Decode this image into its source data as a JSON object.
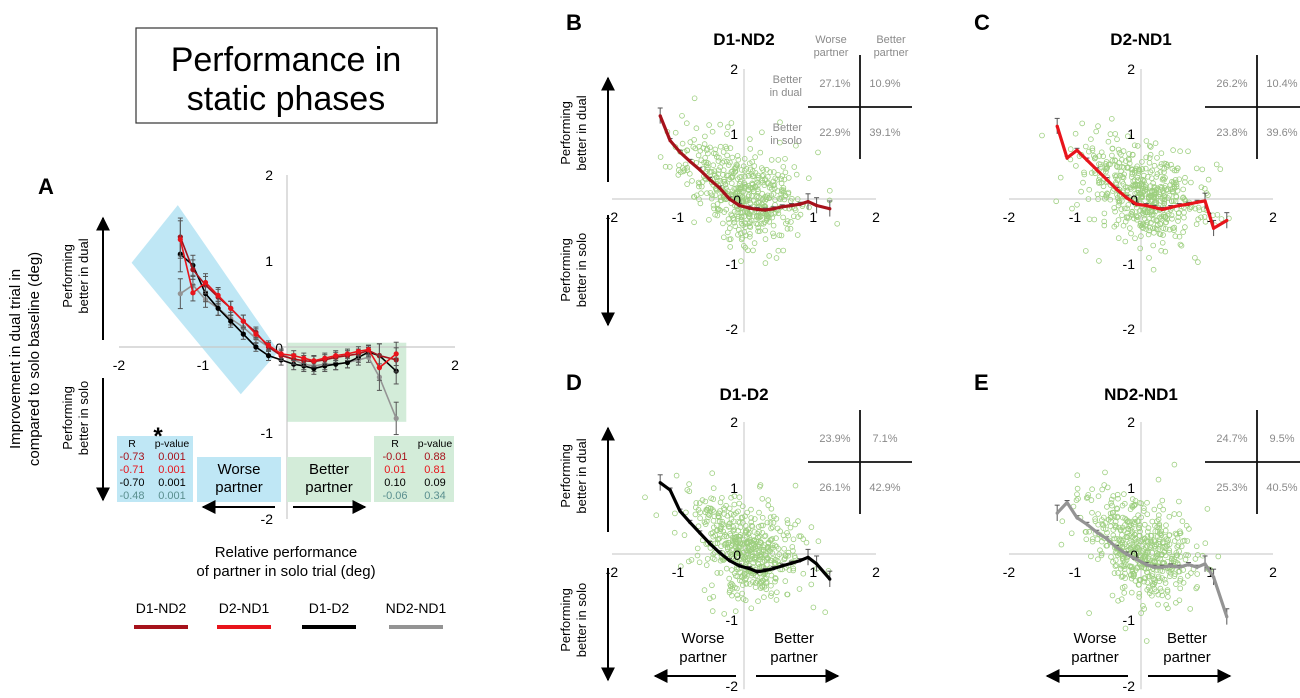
{
  "title_box": {
    "line1": "Performance in",
    "line2": "static phases"
  },
  "legend": [
    {
      "name": "D1-ND2",
      "color": "#a6121b"
    },
    {
      "name": "D2-ND1",
      "color": "#e8141b"
    },
    {
      "name": "D1-D2",
      "color": "#000000"
    },
    {
      "name": "ND2-ND1",
      "color": "#949494"
    }
  ],
  "labels": {
    "y_axis_line1": "Improvement in dual trial in",
    "y_axis_line2": "compared to solo baseline (deg)",
    "x_axis_line1": "Relative performance",
    "x_axis_line2": "of partner in solo trial (deg)",
    "better_dual_1": "Performing",
    "better_dual_2": "better in dual",
    "better_solo_1": "Performing",
    "better_solo_2": "better in solo",
    "worse_partner_1": "Worse",
    "worse_partner_2": "partner",
    "better_partner_1": "Better",
    "better_partner_2": "partner",
    "star": "*"
  },
  "colors": {
    "scatter": "#9dcf7f",
    "blue_band": "#bfe7f5",
    "green_band": "#d3ecd9",
    "errbar": "#555555",
    "grid_text": "#8a8a8a"
  },
  "stats_left": {
    "header": [
      "R",
      "p-value"
    ],
    "rows": [
      [
        "-0.73",
        "0.001"
      ],
      [
        "-0.71",
        "0.001"
      ],
      [
        "-0.70",
        "0.001"
      ],
      [
        "-0.48",
        "0.001"
      ]
    ],
    "colors": [
      "#a6121b",
      "#e8141b",
      "#000000",
      "#5a8f8f"
    ]
  },
  "stats_right": {
    "header": [
      "R",
      "p-value"
    ],
    "rows": [
      [
        "-0.01",
        "0.88"
      ],
      [
        "0.01",
        "0.81"
      ],
      [
        "0.10",
        "0.09"
      ],
      [
        "-0.06",
        "0.34"
      ]
    ],
    "colors": [
      "#a6121b",
      "#e8141b",
      "#000000",
      "#5a8f8f"
    ]
  },
  "chart_data": [
    {
      "panel": "A",
      "type": "line",
      "title": "",
      "xlabel": "Relative performance of partner in solo trial (deg)",
      "ylabel": "Improvement in dual trial in compared to solo baseline (deg)",
      "xlim": [
        -2,
        2
      ],
      "ylim": [
        -2,
        2
      ],
      "xticks": [
        "-2",
        "-1",
        "2"
      ],
      "yticks": [
        "2",
        "1",
        "-1",
        "-2"
      ],
      "origin_label": "0",
      "series": [
        {
          "name": "D1-ND2",
          "color": "#a6121b",
          "x": [
            -1.27,
            -1.12,
            -0.97,
            -0.82,
            -0.67,
            -0.52,
            -0.37,
            -0.22,
            -0.07,
            0.08,
            0.2,
            0.32,
            0.45,
            0.58,
            0.72,
            0.85,
            0.97,
            1.1,
            1.3
          ],
          "y": [
            1.28,
            0.9,
            0.72,
            0.58,
            0.45,
            0.3,
            0.17,
            0.0,
            -0.1,
            -0.14,
            -0.16,
            -0.17,
            -0.15,
            -0.12,
            -0.1,
            -0.08,
            -0.04,
            -0.1,
            -0.15
          ]
        },
        {
          "name": "D2-ND1",
          "color": "#e8141b",
          "x": [
            -1.27,
            -1.12,
            -0.97,
            -0.82,
            -0.67,
            -0.52,
            -0.37,
            -0.22,
            -0.07,
            0.08,
            0.2,
            0.32,
            0.45,
            0.58,
            0.72,
            0.85,
            0.97,
            1.1,
            1.3
          ],
          "y": [
            1.25,
            0.63,
            0.75,
            0.6,
            0.45,
            0.3,
            0.15,
            0.02,
            -0.08,
            -0.1,
            -0.13,
            -0.16,
            -0.13,
            -0.1,
            -0.08,
            -0.05,
            -0.03,
            -0.24,
            -0.08
          ]
        },
        {
          "name": "D1-D2",
          "color": "#000000",
          "x": [
            -1.27,
            -1.12,
            -0.97,
            -0.82,
            -0.67,
            -0.52,
            -0.37,
            -0.22,
            -0.07,
            0.08,
            0.2,
            0.32,
            0.45,
            0.58,
            0.72,
            0.85,
            0.97,
            1.1,
            1.3
          ],
          "y": [
            1.08,
            0.95,
            0.62,
            0.45,
            0.3,
            0.15,
            0.0,
            -0.1,
            -0.15,
            -0.2,
            -0.22,
            -0.25,
            -0.22,
            -0.2,
            -0.18,
            -0.12,
            -0.06,
            -0.1,
            -0.28
          ]
        },
        {
          "name": "ND2-ND1",
          "color": "#949494",
          "x": [
            -1.27,
            -1.12,
            -0.97,
            -0.82,
            -0.67,
            -0.52,
            -0.37,
            -0.22,
            -0.07,
            0.08,
            0.2,
            0.32,
            0.45,
            0.58,
            0.72,
            0.85,
            0.97,
            1.1,
            1.3
          ],
          "y": [
            0.62,
            0.72,
            0.55,
            0.45,
            0.33,
            0.23,
            0.1,
            0.0,
            -0.08,
            -0.15,
            -0.2,
            -0.22,
            -0.2,
            -0.2,
            -0.18,
            -0.15,
            -0.12,
            -0.35,
            -0.83
          ]
        }
      ]
    },
    {
      "panel": "B",
      "type": "scatter",
      "title": "D1-ND2",
      "seed": 11,
      "xlim": [
        -2,
        2
      ],
      "ylim": [
        -2,
        2
      ],
      "xticks": [
        "-2",
        "-1",
        "1",
        "2"
      ],
      "yticks": [
        "2",
        "1",
        "-1",
        "-2"
      ],
      "origin_label": "0",
      "line_color": "#a6121b",
      "line_x": [
        -1.27,
        -1.12,
        -0.97,
        -0.82,
        -0.67,
        -0.52,
        -0.37,
        -0.22,
        -0.07,
        0.08,
        0.2,
        0.32,
        0.45,
        0.58,
        0.72,
        0.85,
        0.97,
        1.1,
        1.3
      ],
      "line_y": [
        1.28,
        0.9,
        0.72,
        0.58,
        0.45,
        0.3,
        0.17,
        0.0,
        -0.1,
        -0.14,
        -0.16,
        -0.17,
        -0.15,
        -0.12,
        -0.1,
        -0.08,
        -0.04,
        -0.1,
        -0.15
      ],
      "table_headers": [
        "Worse",
        "partner",
        "Better",
        "partner"
      ],
      "table_rows": [
        "Better",
        "in dual",
        "Better",
        "in solo"
      ],
      "quadrants": {
        "ul": "27.1%",
        "ur": "10.9%",
        "ll": "22.9%",
        "lr": "39.1%"
      }
    },
    {
      "panel": "C",
      "type": "scatter",
      "title": "D2-ND1",
      "seed": 23,
      "xlim": [
        -2,
        2
      ],
      "ylim": [
        -2,
        2
      ],
      "xticks": [
        "-2",
        "-1",
        "1",
        "2"
      ],
      "yticks": [
        "2",
        "1",
        "-1",
        "-2"
      ],
      "origin_label": "0",
      "line_color": "#e8141b",
      "line_x": [
        -1.27,
        -1.12,
        -0.97,
        -0.82,
        -0.67,
        -0.52,
        -0.37,
        -0.22,
        -0.07,
        0.08,
        0.2,
        0.32,
        0.45,
        0.58,
        0.72,
        0.85,
        0.97,
        1.1,
        1.3
      ],
      "line_y": [
        1.12,
        0.63,
        0.75,
        0.6,
        0.45,
        0.3,
        0.15,
        0.02,
        -0.08,
        -0.1,
        -0.13,
        -0.16,
        -0.13,
        -0.1,
        -0.08,
        -0.05,
        -0.03,
        -0.45,
        -0.33
      ],
      "quadrants": {
        "ul": "26.2%",
        "ur": "10.4%",
        "ll": "23.8%",
        "lr": "39.6%"
      }
    },
    {
      "panel": "D",
      "type": "scatter",
      "title": "D1-D2",
      "seed": 37,
      "xlim": [
        -2,
        2
      ],
      "ylim": [
        -2,
        2
      ],
      "xticks": [
        "-2",
        "-1",
        "1",
        "2"
      ],
      "yticks": [
        "2",
        "1",
        "-1",
        "-2"
      ],
      "origin_label": "0",
      "line_color": "#000000",
      "line_x": [
        -1.27,
        -1.12,
        -0.97,
        -0.82,
        -0.67,
        -0.52,
        -0.37,
        -0.22,
        -0.07,
        0.08,
        0.2,
        0.32,
        0.45,
        0.58,
        0.72,
        0.85,
        0.97,
        1.1,
        1.3
      ],
      "line_y": [
        1.08,
        0.97,
        0.65,
        0.48,
        0.32,
        0.16,
        0.02,
        -0.1,
        -0.18,
        -0.22,
        -0.27,
        -0.25,
        -0.22,
        -0.18,
        -0.14,
        -0.1,
        -0.05,
        -0.15,
        -0.38
      ],
      "quadrants": {
        "ul": "23.9%",
        "ur": "7.1%",
        "ll": "26.1%",
        "lr": "42.9%"
      }
    },
    {
      "panel": "E",
      "type": "scatter",
      "title": "ND2-ND1",
      "seed": 53,
      "xlim": [
        -2,
        2
      ],
      "ylim": [
        -2,
        2
      ],
      "xticks": [
        "-2",
        "-1",
        "1",
        "2"
      ],
      "yticks": [
        "2",
        "1",
        "-1",
        "-2"
      ],
      "origin_label": "0",
      "line_color": "#949494",
      "line_x": [
        -1.27,
        -1.12,
        -0.97,
        -0.82,
        -0.67,
        -0.52,
        -0.37,
        -0.22,
        -0.07,
        0.08,
        0.2,
        0.32,
        0.45,
        0.58,
        0.72,
        0.85,
        0.97,
        1.1,
        1.3
      ],
      "line_y": [
        0.62,
        0.78,
        0.55,
        0.45,
        0.33,
        0.23,
        0.1,
        0.0,
        -0.08,
        -0.16,
        -0.2,
        -0.2,
        -0.18,
        -0.2,
        -0.16,
        -0.2,
        -0.15,
        -0.35,
        -0.95
      ],
      "quadrants": {
        "ul": "24.7%",
        "ur": "9.5%",
        "ll": "25.3%",
        "lr": "40.5%"
      }
    }
  ]
}
